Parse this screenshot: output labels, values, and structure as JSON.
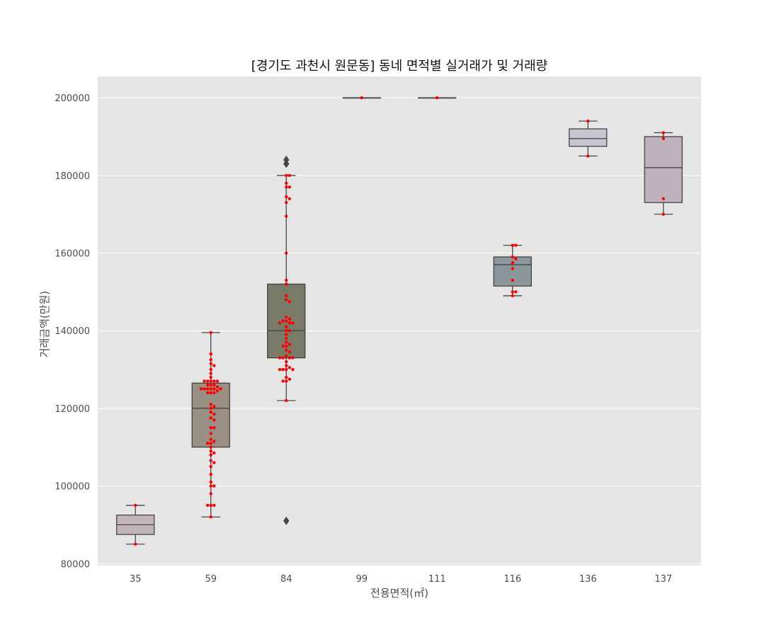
{
  "chart_data": {
    "type": "box",
    "title": "[경기도 과천시 원문동] 동네 면적별 실거래가 및 거래량",
    "xlabel": "전용면적(㎡)",
    "ylabel": "거래금액(만원)",
    "ylim": [
      79500,
      205500
    ],
    "yticks": [
      80000,
      100000,
      120000,
      140000,
      160000,
      180000,
      200000
    ],
    "grid": true,
    "background": "#e5e5e5",
    "grid_color": "#ffffff",
    "point_color": "#ff0000",
    "categories": [
      "35",
      "59",
      "84",
      "99",
      "111",
      "116",
      "136",
      "137"
    ],
    "boxes": [
      {
        "category": "35",
        "whislo": 85000,
        "q1": 87500,
        "med": 90000,
        "q3": 92500,
        "whishi": 95000,
        "fliers": [],
        "color": "#c3b6b9"
      },
      {
        "category": "59",
        "whislo": 92000,
        "q1": 110000,
        "med": 120000,
        "q3": 126500,
        "whishi": 139500,
        "fliers": [],
        "color": "#998f82"
      },
      {
        "category": "84",
        "whislo": 122000,
        "q1": 133000,
        "med": 140000,
        "q3": 152000,
        "whishi": 180000,
        "fliers": [
          91000,
          183000,
          184000
        ],
        "color": "#7a7a68"
      },
      {
        "category": "99",
        "whislo": 200000,
        "q1": 200000,
        "med": 200000,
        "q3": 200000,
        "whishi": 200000,
        "fliers": [],
        "color": "#a0a0a0"
      },
      {
        "category": "111",
        "whislo": 200000,
        "q1": 200000,
        "med": 200000,
        "q3": 200000,
        "whishi": 200000,
        "fliers": [],
        "color": "#a0a0a0"
      },
      {
        "category": "116",
        "whislo": 149000,
        "q1": 151500,
        "med": 157000,
        "q3": 159000,
        "whishi": 162000,
        "fliers": [],
        "color": "#8d979b"
      },
      {
        "category": "136",
        "whislo": 185000,
        "q1": 187500,
        "med": 189500,
        "q3": 192000,
        "whishi": 194000,
        "fliers": [],
        "color": "#c8c4d0"
      },
      {
        "category": "137",
        "whislo": 170000,
        "q1": 173000,
        "med": 182000,
        "q3": 190000,
        "whishi": 191000,
        "fliers": [],
        "color": "#bfb1bb"
      }
    ],
    "points": [
      {
        "category": "35",
        "values": [
          85000,
          95000
        ]
      },
      {
        "category": "59",
        "values": [
          139500,
          134000,
          132500,
          131500,
          131000,
          130000,
          129000,
          128000,
          127000,
          127000,
          127000,
          127000,
          127000,
          126000,
          126000,
          126000,
          125500,
          125000,
          125000,
          125000,
          125000,
          125000,
          125000,
          124500,
          124000,
          124000,
          124000,
          121000,
          120500,
          120000,
          119000,
          118500,
          117500,
          117000,
          115000,
          115000,
          113500,
          112000,
          111500,
          111000,
          111000,
          110000,
          109000,
          108500,
          108000,
          106500,
          106000,
          105000,
          103000,
          101000,
          100000,
          100000,
          98000,
          95000,
          95000,
          95000,
          92000
        ]
      },
      {
        "category": "84",
        "values": [
          180000,
          180000,
          178000,
          177000,
          177000,
          174500,
          174000,
          173000,
          169500,
          160000,
          153000,
          152000,
          149000,
          148000,
          147500,
          143500,
          143000,
          142500,
          142500,
          142000,
          142000,
          142000,
          141000,
          140000,
          140000,
          139000,
          138000,
          137000,
          136500,
          136000,
          136000,
          135000,
          134500,
          133500,
          133000,
          133000,
          133000,
          133000,
          132000,
          131000,
          130500,
          130000,
          130000,
          130000,
          130000,
          128000,
          127500,
          127000,
          127000,
          122000
        ]
      },
      {
        "category": "99",
        "values": [
          200000
        ]
      },
      {
        "category": "111",
        "values": [
          200000
        ]
      },
      {
        "category": "116",
        "values": [
          162000,
          162000,
          159000,
          158500,
          157500,
          156000,
          153000,
          150000,
          150000,
          149000
        ]
      },
      {
        "category": "136",
        "values": [
          194000,
          185000
        ]
      },
      {
        "category": "137",
        "values": [
          191000,
          189500,
          174000,
          170000
        ]
      }
    ]
  }
}
